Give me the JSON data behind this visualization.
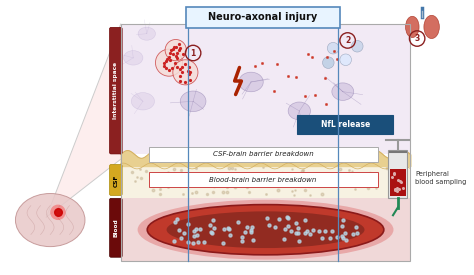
{
  "title": "Neuro-axonal injury",
  "label_interstitial": "Interstitial space",
  "label_csf": "CSF",
  "label_blood": "Blood",
  "label_nfl": "NfL release",
  "label_csf_barrier": "CSF-brain barrier breakdown",
  "label_blood_barrier": "Blood-brain barrier breakdown",
  "label_peripheral": "Peripheral\nblood sampling",
  "circle1": "1",
  "circle2": "2",
  "circle3": "3",
  "bg_color": "#ffffff",
  "title_box_color": "#e8f4ff",
  "title_box_edge": "#5588bb",
  "interstitial_bar_color": "#8b2020",
  "csf_bar_color": "#d4a820",
  "blood_bar_color": "#6b0a0a",
  "nfl_box_color": "#1a4f7a",
  "nfl_text_color": "#ffffff",
  "csf_barrier_edge": "#aaaaaa",
  "blood_barrier_edge": "#cc4444",
  "neuron_area_color": "#f2eaf5",
  "csf_area_color": "#f7f2e2",
  "barrier_color": "#e8d090",
  "blood_bg_color": "#f5e0e0",
  "blood_vessel_outer": "#c0392b",
  "blood_vessel_inner": "#8b1a1a",
  "blood_content": "#922b21",
  "dot_color": "#b8d8e8",
  "circle_edge_color": "#8b2020",
  "skin_wave_color": "#d4b060",
  "box_border_color": "#aaaaaa",
  "perspective_fill": "#fce8e8",
  "brain_color": "#e8c8c8",
  "lung_color": "#cc5544",
  "trachea_color": "#4477aa"
}
